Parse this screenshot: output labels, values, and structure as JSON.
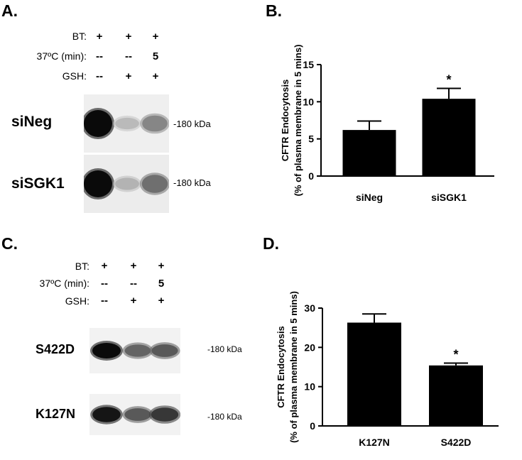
{
  "panels": {
    "a": {
      "letter": "A.",
      "conditions": [
        {
          "label": "BT:",
          "marks": [
            "+",
            "+",
            "+"
          ]
        },
        {
          "label": "37ºC (min):",
          "marks": [
            "--",
            "--",
            "5"
          ]
        },
        {
          "label": "GSH:",
          "marks": [
            "--",
            "+",
            "+"
          ]
        }
      ],
      "blots": [
        {
          "label": "siNeg",
          "size": "-180 kDa",
          "intensity": [
            1.0,
            0.22,
            0.45
          ]
        },
        {
          "label": "siSGK1",
          "size": "-180 kDa",
          "intensity": [
            1.0,
            0.25,
            0.55
          ]
        }
      ]
    },
    "b": {
      "letter": "B."
    },
    "c": {
      "letter": "C.",
      "conditions": [
        {
          "label": "BT:",
          "marks": [
            "+",
            "+",
            "+"
          ]
        },
        {
          "label": "37ºC (min):",
          "marks": [
            "--",
            "--",
            "5"
          ]
        },
        {
          "label": "GSH:",
          "marks": [
            "--",
            "+",
            "+"
          ]
        }
      ],
      "blots": [
        {
          "label": "S422D",
          "size": "-180 kDa",
          "intensity": [
            1.0,
            0.6,
            0.65
          ]
        },
        {
          "label": "K127N",
          "size": "-180 kDa",
          "intensity": [
            0.95,
            0.65,
            0.8
          ]
        }
      ]
    },
    "d": {
      "letter": "D."
    }
  },
  "chart_data": [
    {
      "type": "bar",
      "panel": "B.",
      "categories": [
        "siNeg",
        "siSGK1"
      ],
      "values": [
        6.2,
        10.4
      ],
      "errors": [
        1.2,
        1.4
      ],
      "significance": [
        "",
        "*"
      ],
      "ylabel": "CFTR Endocytosis",
      "ylabel2": "(% of plasma membrane in 5 mins)",
      "ylim": [
        0,
        15
      ],
      "yticks": [
        "0",
        "5",
        "10",
        "15"
      ],
      "grid": false,
      "bar_color": "#000000"
    },
    {
      "type": "bar",
      "panel": "D.",
      "categories": [
        "K127N",
        "S422D"
      ],
      "values": [
        26.3,
        15.4
      ],
      "errors": [
        2.2,
        0.6
      ],
      "significance": [
        "",
        "*"
      ],
      "ylabel": "CFTR Endocytosis",
      "ylabel2": "(% of plasma membrane in 5 mins)",
      "ylim": [
        0,
        30
      ],
      "yticks": [
        "0",
        "10",
        "20",
        "30"
      ],
      "grid": false,
      "bar_color": "#000000"
    }
  ]
}
